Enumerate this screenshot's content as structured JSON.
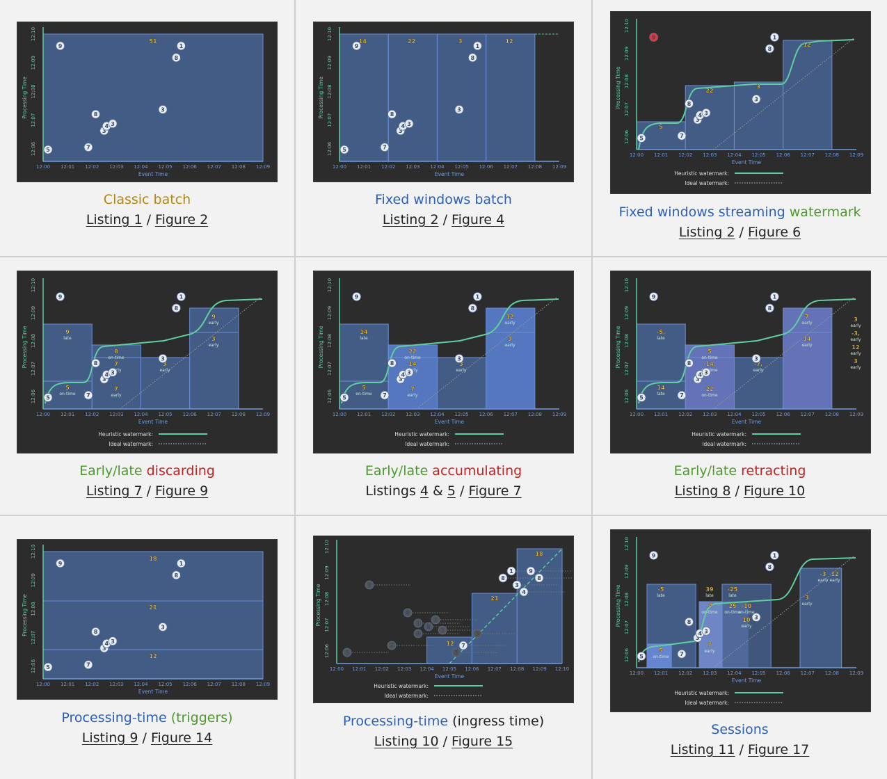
{
  "axis": {
    "processing_time_label": "Processing Time",
    "event_time_label": "Event Time",
    "x_ticks": [
      "12:00",
      "12:01",
      "12:02",
      "12:03",
      "12:04",
      "12:05",
      "12:06",
      "12:07",
      "12:08",
      "12:09"
    ],
    "x_ticks_ingress": [
      "12:00",
      "12:01",
      "12:02",
      "12:03",
      "12:04",
      "12:05",
      "12:06",
      "12:07",
      "12:08",
      "12:09",
      "12:10"
    ],
    "y_ticks": [
      "12:06",
      "12:07",
      "12:08",
      "12:09",
      "12:10"
    ],
    "heuristic_label": "Heuristic watermark:",
    "ideal_label": "Ideal watermark:"
  },
  "colors": {
    "bg": "#f2f2f2",
    "panel": "#2c2c2c",
    "window_fill": "#46628f",
    "window_stroke": "#6b8fd6",
    "axis_green": "#5fcf9f",
    "axis_blue": "#6f9be0",
    "point": "#e8eef8",
    "badge": "#f2c230",
    "late_point": "#e03a3a"
  },
  "cells": [
    {
      "title_parts": [
        {
          "text": "Classic batch",
          "color": "gold"
        }
      ],
      "listing": "Listing 1",
      "figure": "Figure 2",
      "listing_prefix": "",
      "listing_num": "",
      "listing_num2": ""
    },
    {
      "title_parts": [
        {
          "text": "Fixed windows batch",
          "color": "blue"
        }
      ],
      "listing": "Listing 2",
      "figure": "Figure 4"
    },
    {
      "title_parts": [
        {
          "text": "Fixed windows streaming ",
          "color": "blue"
        },
        {
          "text": "watermark",
          "color": "green"
        }
      ],
      "listing": "Listing 2",
      "figure": "Figure 6"
    },
    {
      "title_parts": [
        {
          "text": "Early/late ",
          "color": "green"
        },
        {
          "text": "discarding",
          "color": "red"
        }
      ],
      "listing": "Listing 7",
      "figure": "Figure 9"
    },
    {
      "title_parts": [
        {
          "text": "Early/late ",
          "color": "green"
        },
        {
          "text": "accumulating",
          "color": "red"
        }
      ],
      "listing_multi": {
        "prefix": "Listings ",
        "a": "4",
        "mid": " & ",
        "b": "5"
      },
      "figure": "Figure 7"
    },
    {
      "title_parts": [
        {
          "text": "Early/late ",
          "color": "green"
        },
        {
          "text": "retracting",
          "color": "red"
        }
      ],
      "listing": "Listing 8",
      "figure": "Figure 10"
    },
    {
      "title_parts": [
        {
          "text": "Processing-time ",
          "color": "blue"
        },
        {
          "text": "(triggers)",
          "color": "green"
        }
      ],
      "listing": "Listing 9",
      "figure": "Figure 14"
    },
    {
      "title_parts": [
        {
          "text": "Processing-time ",
          "color": "blue"
        },
        {
          "text": "(ingress time)",
          "color": "dark"
        }
      ],
      "listing": "Listing 10",
      "figure": "Figure 15"
    },
    {
      "title_parts": [
        {
          "text": "Sessions",
          "color": "blue"
        }
      ],
      "listing": "Listing 11",
      "figure": "Figure 17"
    }
  ],
  "separator": " / ",
  "charts": {
    "points": [
      {
        "v": "5",
        "x": 12.2,
        "y": 12.055
      },
      {
        "v": "9",
        "x": 12.7,
        "y": 12.275
      },
      {
        "v": "7",
        "x": 13.85,
        "y": 12.06
      },
      {
        "v": "8",
        "x": 14.15,
        "y": 12.13
      },
      {
        "v": "3",
        "x": 14.5,
        "y": 12.095
      },
      {
        "v": "4",
        "x": 14.6,
        "y": 12.105
      },
      {
        "v": "3",
        "x": 14.85,
        "y": 12.11
      },
      {
        "v": "3",
        "x": 16.9,
        "y": 12.14
      },
      {
        "v": "8",
        "x": 17.45,
        "y": 12.25
      },
      {
        "v": "1",
        "x": 17.65,
        "y": 12.275
      }
    ],
    "batch_sum": "51",
    "fixed_sums": [
      "14",
      "22",
      "3",
      "12"
    ],
    "streaming_sums": [
      "5",
      "22",
      "3",
      "12"
    ],
    "streaming_late_point": "9",
    "discarding_labels": [
      {
        "v": "9",
        "s": "late"
      },
      {
        "v": "5",
        "s": "on-time"
      },
      {
        "v": "8",
        "s": "on-time"
      },
      {
        "v": "7",
        "s": "early"
      },
      {
        "v": "7",
        "s": "early"
      },
      {
        "v": "3",
        "s": "early"
      },
      {
        "v": "3",
        "s": "early"
      },
      {
        "v": "9",
        "s": "early"
      }
    ],
    "accumulating_labels": [
      {
        "v": "14",
        "s": "late"
      },
      {
        "v": "5",
        "s": "on-time"
      },
      {
        "v": "22",
        "s": "on-time"
      },
      {
        "v": "14",
        "s": "early"
      },
      {
        "v": "7",
        "s": "early"
      },
      {
        "v": "3",
        "s": "early"
      },
      {
        "v": "3",
        "s": "early"
      },
      {
        "v": "12",
        "s": "early"
      }
    ],
    "retracting_labels": [
      {
        "v": "-5,",
        "s": "late"
      },
      {
        "v": "14",
        "s": "late"
      },
      {
        "v": "5",
        "s": "on-time"
      },
      {
        "v": "-14,",
        "s": "on-time"
      },
      {
        "v": "22",
        "s": "on-time"
      },
      {
        "v": "-7,",
        "s": "early"
      },
      {
        "v": "14",
        "s": "early"
      },
      {
        "v": "7",
        "s": "early"
      },
      {
        "v": "3",
        "s": "early"
      },
      {
        "v": "-3,",
        "s": "early"
      },
      {
        "v": "12",
        "s": "early"
      },
      {
        "v": "3",
        "s": "early"
      }
    ],
    "triggers_sums": [
      "18",
      "21",
      "12"
    ],
    "ingress_sums": [
      "12",
      "21",
      "18"
    ],
    "ingress_points": [
      "9",
      "8",
      "1",
      "8",
      "3",
      "4",
      "3",
      "7",
      "5",
      "3",
      "5",
      "7",
      "1",
      "8",
      "9",
      "3",
      "4",
      "8"
    ],
    "sessions_labels": [
      {
        "v": "5",
        "s": "on-time"
      },
      {
        "v": "7",
        "s": "early"
      },
      {
        "v": "-5",
        "s": "late"
      },
      {
        "v": "39",
        "s": "late"
      },
      {
        "v": "-25",
        "s": "late"
      },
      {
        "v": "-7",
        "s": "on-time"
      },
      {
        "v": "25",
        "s": "on-time"
      },
      {
        "v": "-10",
        "s": "on-time"
      },
      {
        "v": "10",
        "s": "early"
      },
      {
        "v": "3",
        "s": "early"
      },
      {
        "v": "-3",
        "s": "early"
      },
      {
        "v": "12",
        "s": "early"
      }
    ]
  }
}
